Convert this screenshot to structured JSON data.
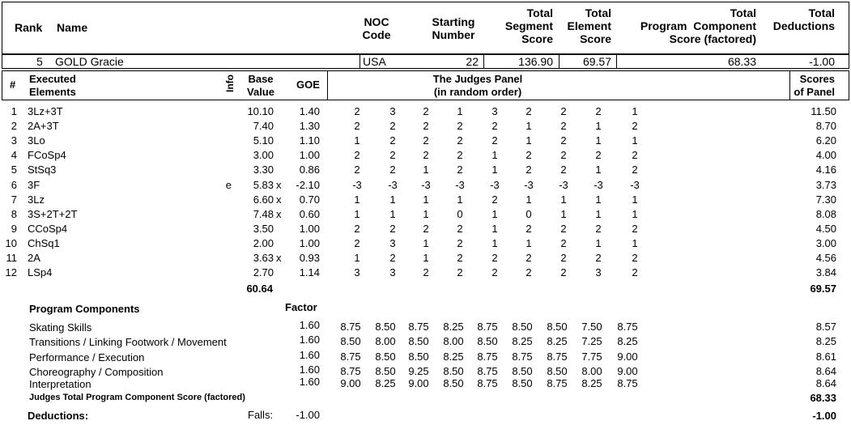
{
  "header": {
    "rank": "Rank",
    "name": "Name",
    "noc_code": [
      "NOC",
      "Code"
    ],
    "starting_number": [
      "Starting",
      "Number"
    ],
    "total_segment_score": [
      "Total",
      "Segment",
      "Score"
    ],
    "total_element_score": [
      "Total",
      "Element",
      "Score"
    ],
    "total_pcs": [
      "Total",
      "Program  Component",
      "Score (factored)"
    ],
    "total_deductions": [
      "Total",
      "Deductions"
    ]
  },
  "skater": {
    "rank": "5",
    "name": "GOLD Gracie",
    "noc": "USA",
    "starting_number": "22",
    "segment_score": "136.90",
    "element_score": "69.57",
    "pcs": "68.33",
    "deductions": "-1.00"
  },
  "elements_header": {
    "num": "#",
    "executed": [
      "Executed",
      "Elements"
    ],
    "info": "Info",
    "base_value": [
      "Base",
      "Value"
    ],
    "goe": "GOE",
    "judges_panel": [
      "The Judges Panel",
      "(in random order)"
    ],
    "scores_of_panel": [
      "Scores",
      "of Panel"
    ]
  },
  "elements": [
    {
      "n": "1",
      "name": "3Lz+3T",
      "info": "",
      "base": "10.10",
      "x": "",
      "goe": "1.40",
      "judges": [
        "2",
        "3",
        "2",
        "1",
        "3",
        "2",
        "2",
        "2",
        "1"
      ],
      "score": "11.50"
    },
    {
      "n": "2",
      "name": "2A+3T",
      "info": "",
      "base": "7.40",
      "x": "",
      "goe": "1.30",
      "judges": [
        "2",
        "2",
        "2",
        "2",
        "2",
        "1",
        "2",
        "1",
        "2"
      ],
      "score": "8.70"
    },
    {
      "n": "3",
      "name": "3Lo",
      "info": "",
      "base": "5.10",
      "x": "",
      "goe": "1.10",
      "judges": [
        "1",
        "2",
        "2",
        "2",
        "2",
        "1",
        "2",
        "1",
        "1"
      ],
      "score": "6.20"
    },
    {
      "n": "4",
      "name": "FCoSp4",
      "info": "",
      "base": "3.00",
      "x": "",
      "goe": "1.00",
      "judges": [
        "2",
        "2",
        "2",
        "2",
        "1",
        "2",
        "2",
        "2",
        "2"
      ],
      "score": "4.00"
    },
    {
      "n": "5",
      "name": "StSq3",
      "info": "",
      "base": "3.30",
      "x": "",
      "goe": "0.86",
      "judges": [
        "2",
        "2",
        "1",
        "2",
        "1",
        "2",
        "2",
        "1",
        "2"
      ],
      "score": "4.16"
    },
    {
      "n": "6",
      "name": "3F",
      "info": "e",
      "base": "5.83",
      "x": "x",
      "goe": "-2.10",
      "judges": [
        "-3",
        "-3",
        "-3",
        "-3",
        "-3",
        "-3",
        "-3",
        "-3",
        "-3"
      ],
      "score": "3.73"
    },
    {
      "n": "7",
      "name": "3Lz",
      "info": "",
      "base": "6.60",
      "x": "x",
      "goe": "0.70",
      "judges": [
        "1",
        "1",
        "1",
        "1",
        "2",
        "1",
        "1",
        "1",
        "1"
      ],
      "score": "7.30"
    },
    {
      "n": "8",
      "name": "3S+2T+2T",
      "info": "",
      "base": "7.48",
      "x": "x",
      "goe": "0.60",
      "judges": [
        "1",
        "1",
        "1",
        "0",
        "1",
        "0",
        "1",
        "1",
        "1"
      ],
      "score": "8.08"
    },
    {
      "n": "9",
      "name": "CCoSp4",
      "info": "",
      "base": "3.50",
      "x": "",
      "goe": "1.00",
      "judges": [
        "2",
        "2",
        "2",
        "2",
        "1",
        "2",
        "2",
        "2",
        "2"
      ],
      "score": "4.50"
    },
    {
      "n": "10",
      "name": "ChSq1",
      "info": "",
      "base": "2.00",
      "x": "",
      "goe": "1.00",
      "judges": [
        "2",
        "3",
        "1",
        "2",
        "1",
        "1",
        "2",
        "1",
        "1"
      ],
      "score": "3.00"
    },
    {
      "n": "11",
      "name": "2A",
      "info": "",
      "base": "3.63",
      "x": "x",
      "goe": "0.93",
      "judges": [
        "1",
        "2",
        "1",
        "2",
        "2",
        "2",
        "2",
        "2",
        "2"
      ],
      "score": "4.56"
    },
    {
      "n": "12",
      "name": "LSp4",
      "info": "",
      "base": "2.70",
      "x": "",
      "goe": "1.14",
      "judges": [
        "3",
        "3",
        "2",
        "2",
        "2",
        "2",
        "2",
        "3",
        "2"
      ],
      "score": "3.84"
    }
  ],
  "elements_totals": {
    "base": "60.64",
    "score": "69.57"
  },
  "program_components": {
    "title": "Program Components",
    "factor_label": "Factor",
    "items": [
      {
        "name": "Skating Skills",
        "factor": "1.60",
        "judges": [
          "8.75",
          "8.50",
          "8.75",
          "8.25",
          "8.75",
          "8.50",
          "8.50",
          "7.50",
          "8.75"
        ],
        "score": "8.57"
      },
      {
        "name": "Transitions / Linking Footwork / Movement",
        "factor": "1.60",
        "judges": [
          "8.50",
          "8.00",
          "8.50",
          "8.00",
          "8.50",
          "8.25",
          "8.25",
          "7.25",
          "8.25"
        ],
        "score": "8.25"
      },
      {
        "name": "Performance / Execution",
        "factor": "1.60",
        "judges": [
          "8.75",
          "8.50",
          "8.50",
          "8.25",
          "8.75",
          "8.75",
          "8.75",
          "7.75",
          "9.00"
        ],
        "score": "8.61"
      },
      {
        "name": "Choreography / Composition",
        "factor": "1.60",
        "judges": [
          "8.75",
          "8.50",
          "9.25",
          "8.50",
          "8.75",
          "8.50",
          "8.50",
          "8.00",
          "9.00"
        ],
        "score": "8.64"
      },
      {
        "name": "Interpretation",
        "factor": "1.60",
        "judges": [
          "9.00",
          "8.25",
          "9.00",
          "8.50",
          "8.75",
          "8.50",
          "8.75",
          "8.25",
          "8.75"
        ],
        "score": "8.64"
      }
    ],
    "total_label": "Judges Total Program Component Score (factored)",
    "total": "68.33"
  },
  "deductions": {
    "label": "Deductions:",
    "falls_label": "Falls:",
    "falls_value": "-1.00",
    "total": "-1.00"
  }
}
